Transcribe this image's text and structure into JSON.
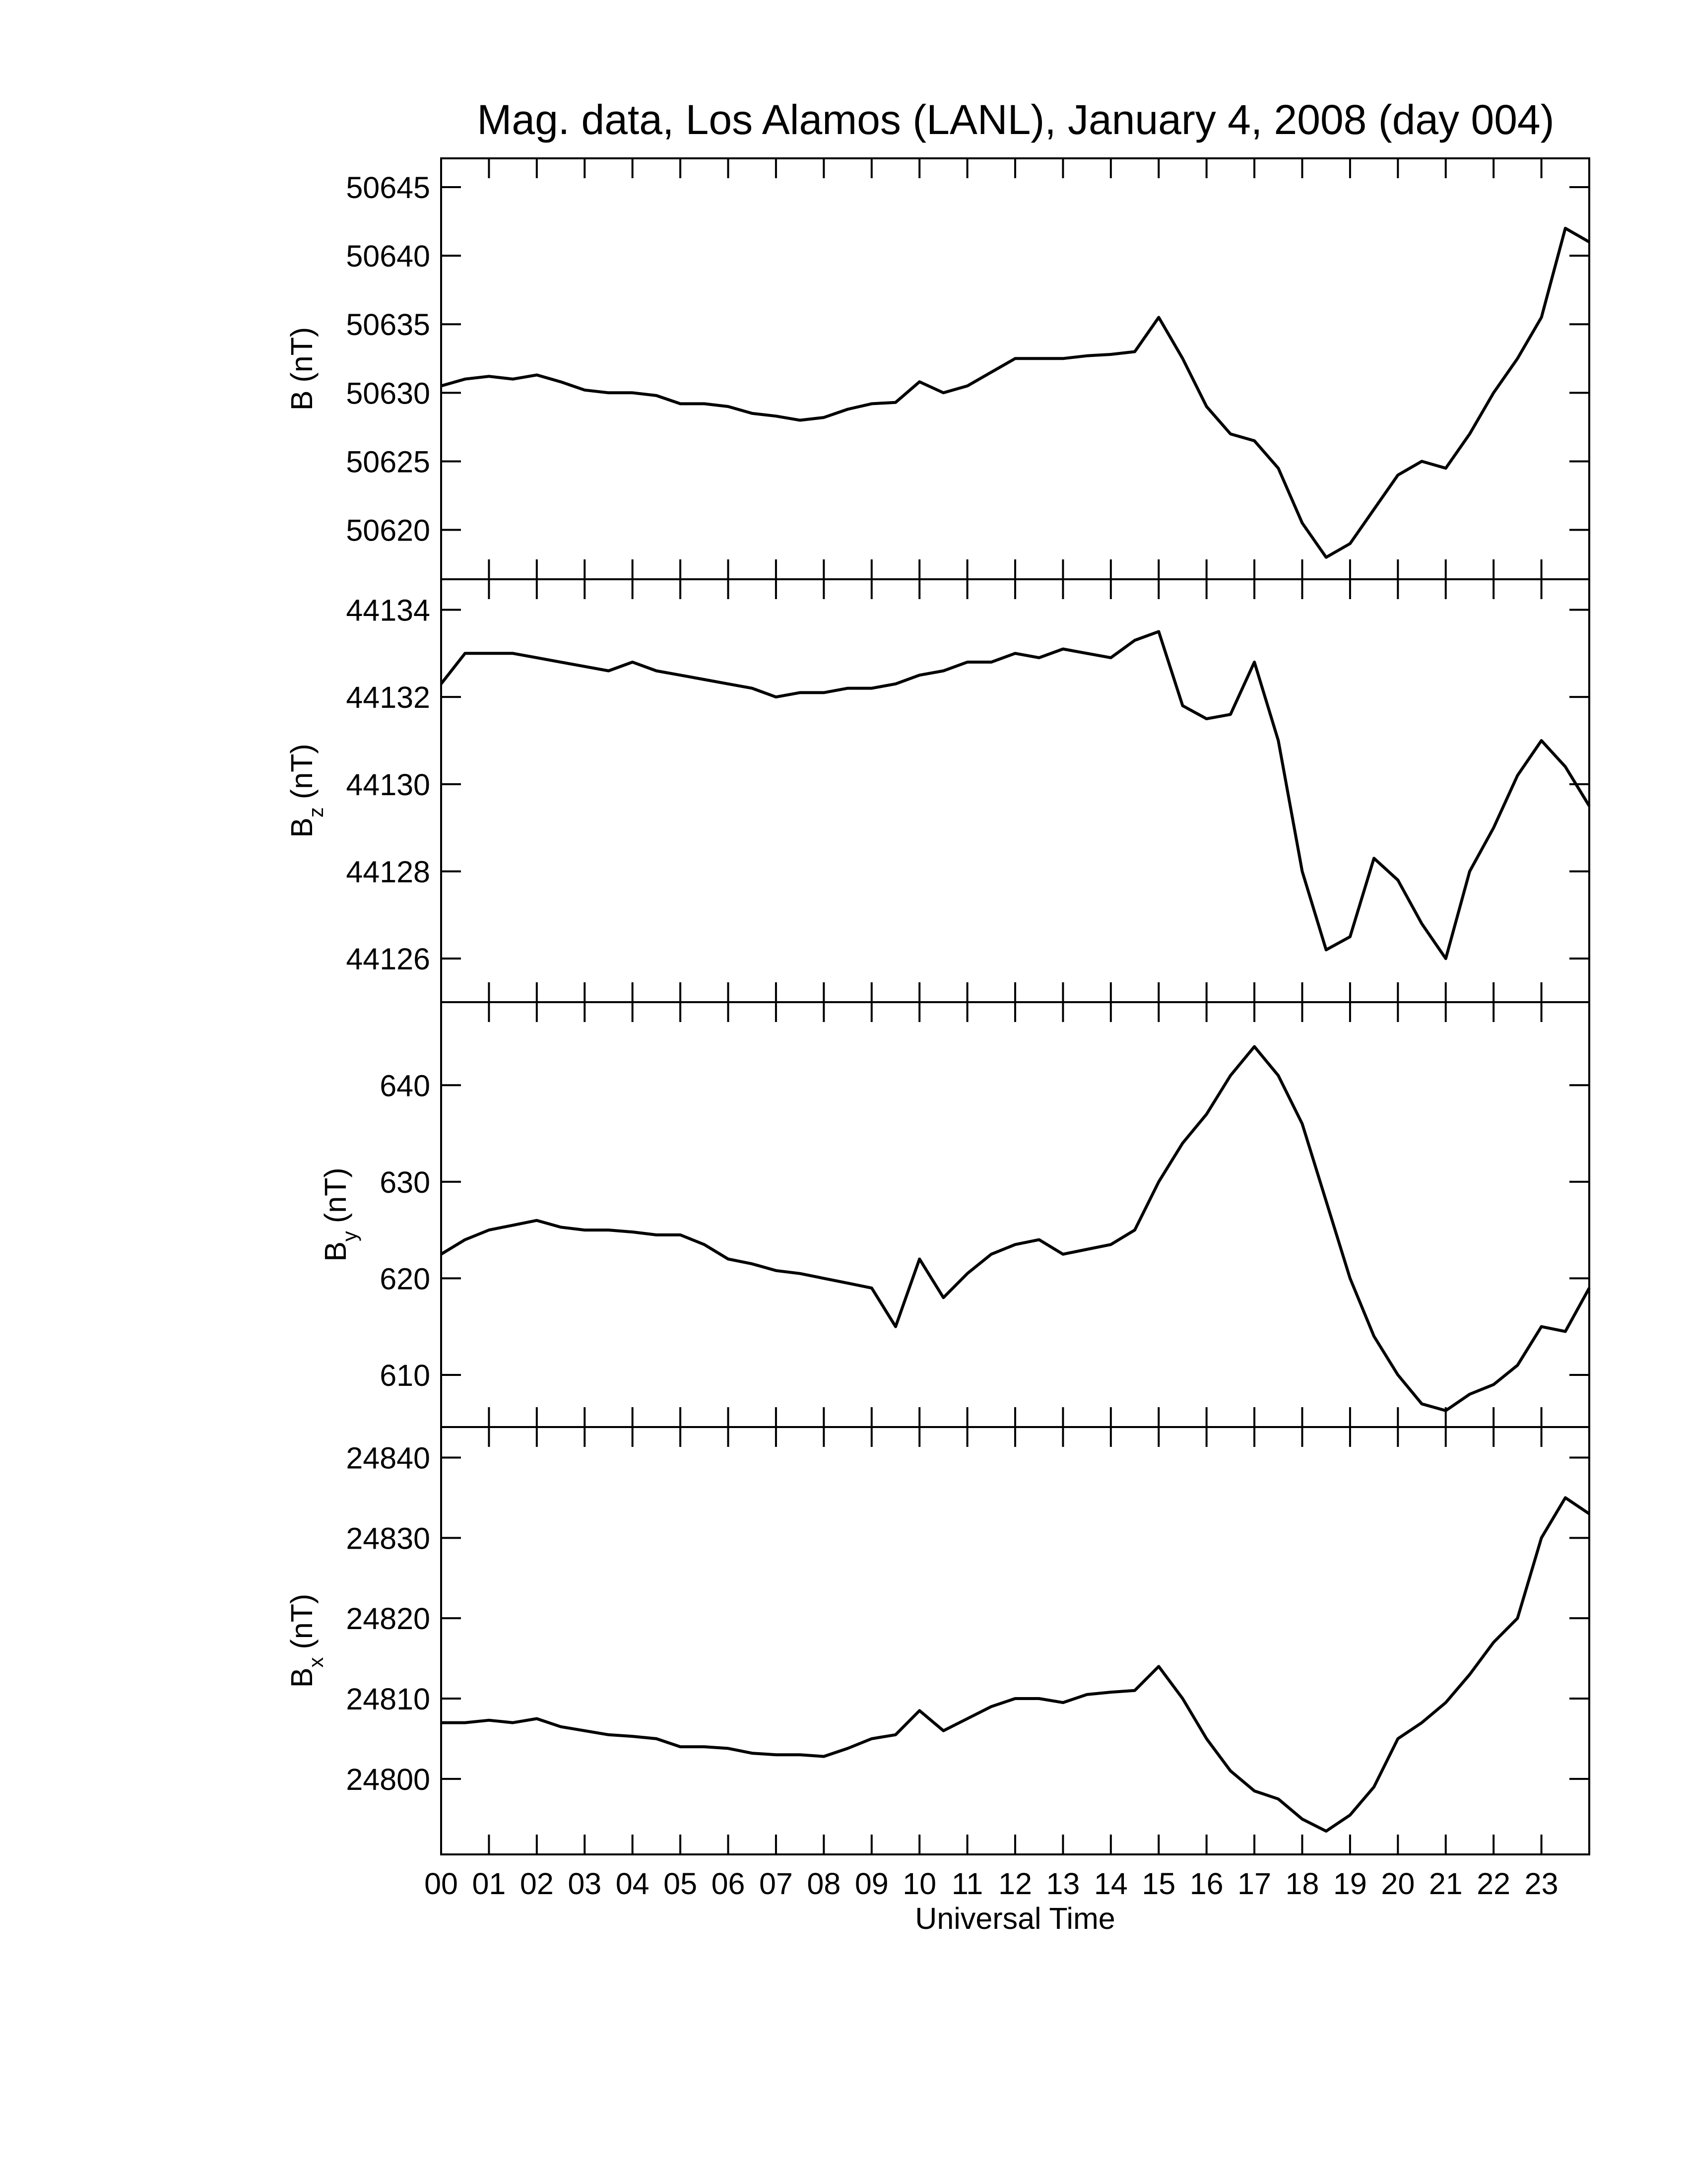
{
  "chart_data": [
    {
      "type": "line",
      "title": "Mag. data, Los Alamos (LANL), January 4, 2008 (day 004)",
      "ylabel": "B",
      "ylabel_unit": "(nT)",
      "color": "#000000",
      "xlim": [
        0,
        24
      ],
      "ylim": [
        50616.4,
        50647.1
      ],
      "yticks": [
        50620,
        50625,
        50630,
        50635,
        50640,
        50645
      ],
      "x": [
        0,
        0.5,
        1,
        1.5,
        2,
        2.5,
        3,
        3.5,
        4,
        4.5,
        5,
        5.5,
        6,
        6.5,
        7,
        7.5,
        8,
        8.5,
        9,
        9.5,
        10,
        10.5,
        11,
        11.5,
        12,
        12.5,
        13,
        13.5,
        14,
        14.5,
        15,
        15.5,
        16,
        16.5,
        17,
        17.5,
        18,
        18.5,
        19,
        19.5,
        20,
        20.5,
        21,
        21.5,
        22,
        22.5,
        23,
        23.5,
        24
      ],
      "values": [
        50630.5,
        50631,
        50631.2,
        50631,
        50631.3,
        50630.8,
        50630.2,
        50630,
        50630,
        50629.8,
        50629.2,
        50629.2,
        50629,
        50628.5,
        50628.3,
        50628,
        50628.2,
        50628.8,
        50629.2,
        50629.3,
        50630.8,
        50630,
        50630.5,
        50631.5,
        50632.5,
        50632.5,
        50632.5,
        50632.7,
        50632.8,
        50633,
        50635.5,
        50632.5,
        50629,
        50627,
        50626.5,
        50624.5,
        50620.5,
        50618,
        50619,
        50621.5,
        50624,
        50625,
        50624.5,
        50627,
        50630,
        50632.5,
        50635.5,
        50642,
        50641
      ]
    },
    {
      "type": "line",
      "ylabel": "B",
      "ylabel_sub": "z",
      "ylabel_unit": "(nT)",
      "color": "#000000",
      "xlim": [
        0,
        24
      ],
      "ylim": [
        44125.0,
        44134.7
      ],
      "yticks": [
        44126,
        44128,
        44130,
        44132,
        44134
      ],
      "x": [
        0,
        0.5,
        1,
        1.5,
        2,
        2.5,
        3,
        3.5,
        4,
        4.5,
        5,
        5.5,
        6,
        6.5,
        7,
        7.5,
        8,
        8.5,
        9,
        9.5,
        10,
        10.5,
        11,
        11.5,
        12,
        12.5,
        13,
        13.5,
        14,
        14.5,
        15,
        15.5,
        16,
        16.5,
        17,
        17.5,
        18,
        18.5,
        19,
        19.5,
        20,
        20.5,
        21,
        21.5,
        22,
        22.5,
        23,
        23.5,
        24
      ],
      "values": [
        44132.3,
        44133,
        44133,
        44133,
        44132.9,
        44132.8,
        44132.7,
        44132.6,
        44132.8,
        44132.6,
        44132.5,
        44132.4,
        44132.3,
        44132.2,
        44132.0,
        44132.1,
        44132.1,
        44132.2,
        44132.2,
        44132.3,
        44132.5,
        44132.6,
        44132.8,
        44132.8,
        44133,
        44132.9,
        44133.1,
        44133,
        44132.9,
        44133.3,
        44133.5,
        44131.8,
        44131.5,
        44131.6,
        44132.8,
        44131,
        44128,
        44126.2,
        44126.5,
        44128.3,
        44127.8,
        44126.8,
        44126,
        44128,
        44129,
        44130.2,
        44131,
        44130.4,
        44129.5
      ]
    },
    {
      "type": "line",
      "ylabel": "B",
      "ylabel_sub": "y",
      "ylabel_unit": "(nT)",
      "color": "#000000",
      "xlim": [
        0,
        24
      ],
      "ylim": [
        604.6,
        648.6
      ],
      "yticks": [
        610,
        620,
        630,
        640
      ],
      "x": [
        0,
        0.5,
        1,
        1.5,
        2,
        2.5,
        3,
        3.5,
        4,
        4.5,
        5,
        5.5,
        6,
        6.5,
        7,
        7.5,
        8,
        8.5,
        9,
        9.5,
        10,
        10.5,
        11,
        11.5,
        12,
        12.5,
        13,
        13.5,
        14,
        14.5,
        15,
        15.5,
        16,
        16.5,
        17,
        17.5,
        18,
        18.5,
        19,
        19.5,
        20,
        20.5,
        21,
        21.5,
        22,
        22.5,
        23,
        23.5,
        24
      ],
      "values": [
        622.5,
        624,
        625,
        625.5,
        626,
        625.3,
        625,
        625,
        624.8,
        624.5,
        624.5,
        623.5,
        622,
        621.5,
        620.8,
        620.5,
        620,
        619.5,
        619,
        615,
        622,
        618,
        620.5,
        622.5,
        623.5,
        624,
        622.5,
        623,
        623.5,
        625,
        630,
        634,
        637,
        641,
        644,
        641,
        636,
        628,
        620,
        614,
        610,
        607,
        606.3,
        608,
        609,
        611,
        615,
        614.5,
        619
      ]
    },
    {
      "type": "line",
      "ylabel": "B",
      "ylabel_sub": "x",
      "ylabel_unit": "(nT)",
      "xlabel": "Universal Time",
      "color": "#000000",
      "xlim": [
        0,
        24
      ],
      "ylim": [
        24790.6,
        24843.8
      ],
      "yticks": [
        24800,
        24810,
        24820,
        24830,
        24840
      ],
      "xticks": [
        {
          "value": 0,
          "label": "00"
        },
        {
          "value": 1,
          "label": "01"
        },
        {
          "value": 2,
          "label": "02"
        },
        {
          "value": 3,
          "label": "03"
        },
        {
          "value": 4,
          "label": "04"
        },
        {
          "value": 5,
          "label": "05"
        },
        {
          "value": 6,
          "label": "06"
        },
        {
          "value": 7,
          "label": "07"
        },
        {
          "value": 8,
          "label": "08"
        },
        {
          "value": 9,
          "label": "09"
        },
        {
          "value": 10,
          "label": "10"
        },
        {
          "value": 11,
          "label": "11"
        },
        {
          "value": 12,
          "label": "12"
        },
        {
          "value": 13,
          "label": "13"
        },
        {
          "value": 14,
          "label": "14"
        },
        {
          "value": 15,
          "label": "15"
        },
        {
          "value": 16,
          "label": "16"
        },
        {
          "value": 17,
          "label": "17"
        },
        {
          "value": 18,
          "label": "18"
        },
        {
          "value": 19,
          "label": "19"
        },
        {
          "value": 20,
          "label": "20"
        },
        {
          "value": 21,
          "label": "21"
        },
        {
          "value": 22,
          "label": "22"
        },
        {
          "value": 23,
          "label": "23"
        }
      ],
      "x": [
        0,
        0.5,
        1,
        1.5,
        2,
        2.5,
        3,
        3.5,
        4,
        4.5,
        5,
        5.5,
        6,
        6.5,
        7,
        7.5,
        8,
        8.5,
        9,
        9.5,
        10,
        10.5,
        11,
        11.5,
        12,
        12.5,
        13,
        13.5,
        14,
        14.5,
        15,
        15.5,
        16,
        16.5,
        17,
        17.5,
        18,
        18.5,
        19,
        19.5,
        20,
        20.5,
        21,
        21.5,
        22,
        22.5,
        23,
        23.5,
        24
      ],
      "values": [
        24807,
        24807,
        24807.3,
        24807,
        24807.5,
        24806.5,
        24806,
        24805.5,
        24805.3,
        24805,
        24804,
        24804,
        24803.8,
        24803.2,
        24803,
        24803,
        24802.8,
        24803.8,
        24805,
        24805.5,
        24808.5,
        24806,
        24807.5,
        24809,
        24810,
        24810,
        24809.5,
        24810.5,
        24810.8,
        24811,
        24814,
        24810,
        24805,
        24801,
        24798.5,
        24797.5,
        24795,
        24793.5,
        24795.5,
        24799,
        24805,
        24807,
        24809.5,
        24813,
        24817,
        24820,
        24830,
        24835,
        24833
      ]
    }
  ]
}
